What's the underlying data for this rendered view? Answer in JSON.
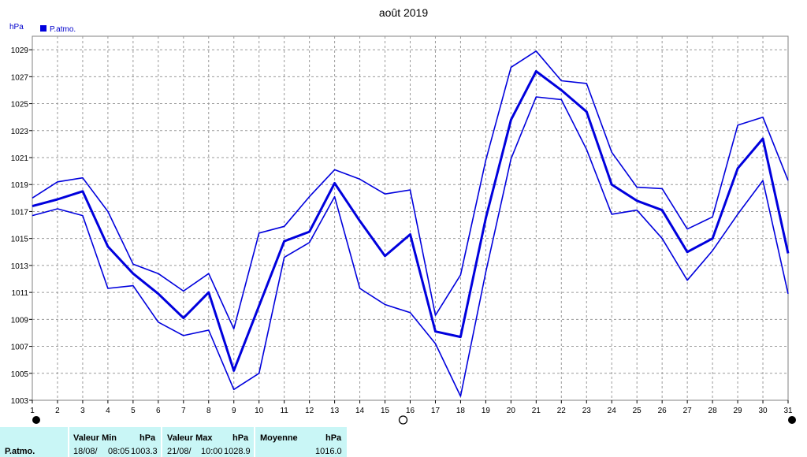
{
  "chart_data": {
    "type": "line",
    "title": "août 2019",
    "ylabel": "hPa",
    "legend": "P.atmo.",
    "legend_position": "top-left",
    "grid": true,
    "ylim": [
      1003,
      1030
    ],
    "yticks": [
      1003,
      1005,
      1007,
      1009,
      1011,
      1013,
      1015,
      1017,
      1019,
      1021,
      1023,
      1025,
      1027,
      1029
    ],
    "x": [
      1,
      2,
      3,
      4,
      5,
      6,
      7,
      8,
      9,
      10,
      11,
      12,
      13,
      14,
      15,
      16,
      17,
      18,
      19,
      20,
      21,
      22,
      23,
      24,
      25,
      26,
      27,
      28,
      29,
      30,
      31
    ],
    "series": [
      {
        "name": "P.atmo.",
        "values": [
          1017.4,
          1017.9,
          1018.5,
          1014.4,
          1012.4,
          1010.9,
          1009.1,
          1011.0,
          1005.2,
          1010.0,
          1014.8,
          1015.5,
          1019.1,
          1016.3,
          1013.7,
          1015.3,
          1008.1,
          1007.7,
          1016.5,
          1023.8,
          1027.4,
          1026.0,
          1024.4,
          1019.0,
          1017.8,
          1017.1,
          1014.0,
          1015.0,
          1020.2,
          1022.4,
          1013.9
        ]
      },
      {
        "values": [
          1018.0,
          1019.2,
          1019.5,
          1017.0,
          1013.1,
          1012.4,
          1011.1,
          1012.4,
          1008.3,
          1015.4,
          1015.9,
          1018.1,
          1020.1,
          1019.4,
          1018.3,
          1018.6,
          1009.3,
          1012.3,
          1020.8,
          1027.7,
          1028.9,
          1026.7,
          1026.5,
          1021.4,
          1018.8,
          1018.7,
          1015.7,
          1016.6,
          1023.4,
          1024.0,
          1019.3
        ]
      },
      {
        "values": [
          1016.7,
          1017.2,
          1016.7,
          1011.3,
          1011.5,
          1008.8,
          1007.8,
          1008.2,
          1003.8,
          1005.0,
          1013.6,
          1014.7,
          1018.1,
          1011.3,
          1010.1,
          1009.5,
          1007.2,
          1003.3,
          1012.5,
          1020.9,
          1025.5,
          1025.3,
          1021.6,
          1016.8,
          1017.1,
          1015.0,
          1011.9,
          1014.1,
          1016.8,
          1019.3,
          1010.9
        ]
      }
    ],
    "colors": {
      "series": "#0000dd",
      "grid": "#9a9a9a",
      "frame": "#808080"
    },
    "moon_phases": [
      {
        "day": 1,
        "phase": "new-moon"
      },
      {
        "day": 16,
        "phase": "full-moon"
      },
      {
        "day": 31,
        "phase": "new-moon"
      }
    ]
  },
  "stats": {
    "series_label": "P.atmo.",
    "min": {
      "header": "Valeur Min",
      "unit": "hPa",
      "date": "18/08/",
      "time": "08:05",
      "value": "1003.3"
    },
    "max": {
      "header": "Valeur Max",
      "unit": "hPa",
      "date": "21/08/",
      "time": "10:00",
      "value": "1028.9"
    },
    "mean": {
      "header": "Moyenne",
      "unit": "hPa",
      "value": "1016.0"
    },
    "background": "#c9f6f6"
  }
}
